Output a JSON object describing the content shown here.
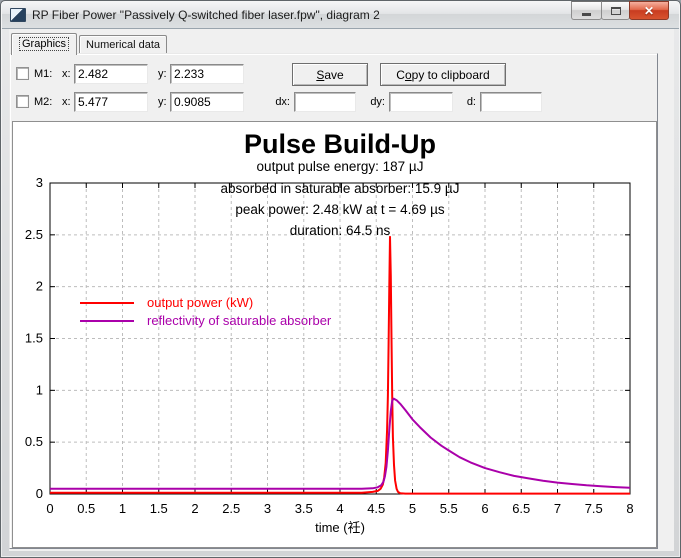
{
  "window": {
    "title": "RP Fiber Power \"Passively Q-switched fiber laser.fpw\", diagram 2",
    "close_glyph": "✕"
  },
  "tabs": [
    {
      "label": "Graphics",
      "active": true
    },
    {
      "label": "Numerical data",
      "active": false
    }
  ],
  "controls": {
    "m1": {
      "label": "M1:",
      "x_label": "x:",
      "x_value": "2.482",
      "y_label": "y:",
      "y_value": "2.233",
      "checked": false
    },
    "m2": {
      "label": "M2:",
      "x_label": "x:",
      "x_value": "5.477",
      "y_label": "y:",
      "y_value": "0.9085",
      "checked": false
    },
    "dx_label": "dx:",
    "dx_value": "",
    "dy_label": "dy:",
    "dy_value": "",
    "d_label": "d:",
    "d_value": ""
  },
  "buttons": {
    "save": {
      "pre": "",
      "mn": "S",
      "post": "ave"
    },
    "copy": {
      "pre": "C",
      "mn": "o",
      "post": "py to clipboard"
    }
  },
  "chart_data": {
    "type": "line",
    "title": "Pulse Build-Up",
    "annotations": [
      "output pulse energy: 187 µJ",
      "absorbed in saturable absorber: 15.9 µJ",
      "peak power: 2.48 kW at t = 4.69 µs",
      "duration: 64.5 ns"
    ],
    "xlabel": "time (祍)",
    "ylabel": "",
    "xlim": [
      0,
      8
    ],
    "ylim": [
      0,
      3
    ],
    "xticks": [
      0,
      0.5,
      1,
      1.5,
      2,
      2.5,
      3,
      3.5,
      4,
      4.5,
      5,
      5.5,
      6,
      6.5,
      7,
      7.5,
      8
    ],
    "yticks": [
      0,
      0.5,
      1,
      1.5,
      2,
      2.5,
      3
    ],
    "grid": true,
    "legend_position": "upper-left-inside",
    "series": [
      {
        "name": "output power (kW)",
        "color": "#ff0000",
        "points": [
          [
            0,
            0.012
          ],
          [
            4.3,
            0.012
          ],
          [
            4.45,
            0.02
          ],
          [
            4.52,
            0.03
          ],
          [
            4.56,
            0.05
          ],
          [
            4.59,
            0.09
          ],
          [
            4.61,
            0.16
          ],
          [
            4.63,
            0.3
          ],
          [
            4.65,
            0.62
          ],
          [
            4.66,
            0.95
          ],
          [
            4.67,
            1.45
          ],
          [
            4.68,
            2.0
          ],
          [
            4.69,
            2.48
          ],
          [
            4.7,
            2.1
          ],
          [
            4.71,
            1.5
          ],
          [
            4.72,
            0.95
          ],
          [
            4.73,
            0.55
          ],
          [
            4.745,
            0.28
          ],
          [
            4.76,
            0.13
          ],
          [
            4.78,
            0.05
          ],
          [
            4.8,
            0.02
          ],
          [
            4.83,
            0.008
          ],
          [
            4.9,
            0.004
          ],
          [
            8,
            0.004
          ]
        ]
      },
      {
        "name": "reflectivity of saturable absorber",
        "color": "#aa00aa",
        "points": [
          [
            0,
            0.05
          ],
          [
            4.3,
            0.05
          ],
          [
            4.45,
            0.055
          ],
          [
            4.52,
            0.065
          ],
          [
            4.57,
            0.085
          ],
          [
            4.6,
            0.12
          ],
          [
            4.62,
            0.17
          ],
          [
            4.64,
            0.26
          ],
          [
            4.66,
            0.42
          ],
          [
            4.68,
            0.62
          ],
          [
            4.7,
            0.8
          ],
          [
            4.72,
            0.9
          ],
          [
            4.74,
            0.92
          ],
          [
            4.78,
            0.905
          ],
          [
            4.83,
            0.87
          ],
          [
            4.9,
            0.81
          ],
          [
            5.0,
            0.72
          ],
          [
            5.1,
            0.645
          ],
          [
            5.25,
            0.545
          ],
          [
            5.4,
            0.465
          ],
          [
            5.5,
            0.42
          ],
          [
            5.65,
            0.355
          ],
          [
            5.8,
            0.305
          ],
          [
            6.0,
            0.25
          ],
          [
            6.2,
            0.21
          ],
          [
            6.4,
            0.175
          ],
          [
            6.6,
            0.15
          ],
          [
            6.8,
            0.128
          ],
          [
            7.0,
            0.11
          ],
          [
            7.2,
            0.096
          ],
          [
            7.4,
            0.084
          ],
          [
            7.6,
            0.075
          ],
          [
            7.8,
            0.067
          ],
          [
            8.0,
            0.06
          ]
        ]
      }
    ],
    "colors": {
      "grid": "#bdbdbd",
      "frame": "#000000",
      "text": "#000000"
    }
  }
}
